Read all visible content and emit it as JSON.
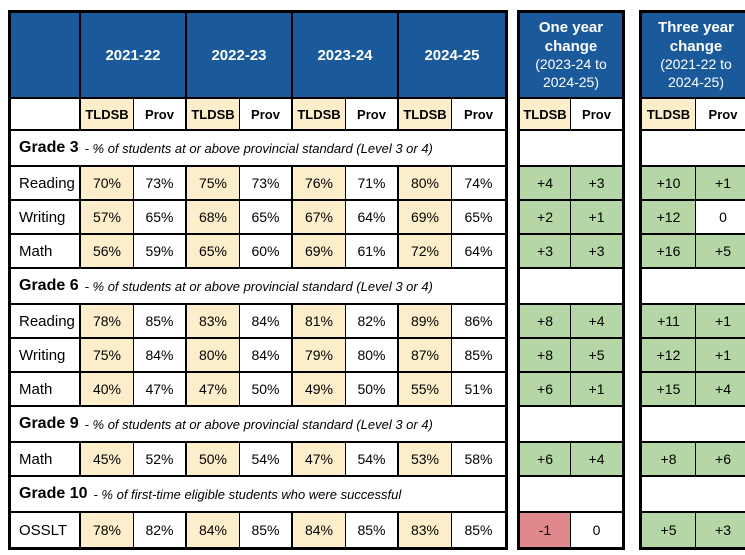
{
  "labels": {
    "tldsb": "TLDSB",
    "prov": "Prov"
  },
  "main_table": {
    "years": [
      "2021-22",
      "2022-23",
      "2023-24",
      "2024-25"
    ],
    "sections": [
      {
        "title": "Grade 3",
        "desc": "- % of students at or above provincial standard (Level 3 or 4)",
        "rows": [
          {
            "label": "Reading",
            "values": [
              "70%",
              "73%",
              "75%",
              "73%",
              "76%",
              "71%",
              "80%",
              "74%"
            ],
            "one_year": [
              "+4",
              "+3"
            ],
            "three_year": [
              "+10",
              "+1"
            ]
          },
          {
            "label": "Writing",
            "values": [
              "57%",
              "65%",
              "68%",
              "65%",
              "67%",
              "64%",
              "69%",
              "65%"
            ],
            "one_year": [
              "+2",
              "+1"
            ],
            "three_year": [
              "+12",
              "0"
            ]
          },
          {
            "label": "Math",
            "values": [
              "56%",
              "59%",
              "65%",
              "60%",
              "69%",
              "61%",
              "72%",
              "64%"
            ],
            "one_year": [
              "+3",
              "+3"
            ],
            "three_year": [
              "+16",
              "+5"
            ]
          }
        ]
      },
      {
        "title": "Grade 6",
        "desc": "- % of students at or above provincial standard (Level 3 or 4)",
        "rows": [
          {
            "label": "Reading",
            "values": [
              "78%",
              "85%",
              "83%",
              "84%",
              "81%",
              "82%",
              "89%",
              "86%"
            ],
            "one_year": [
              "+8",
              "+4"
            ],
            "three_year": [
              "+11",
              "+1"
            ]
          },
          {
            "label": "Writing",
            "values": [
              "75%",
              "84%",
              "80%",
              "84%",
              "79%",
              "80%",
              "87%",
              "85%"
            ],
            "one_year": [
              "+8",
              "+5"
            ],
            "three_year": [
              "+12",
              "+1"
            ]
          },
          {
            "label": "Math",
            "values": [
              "40%",
              "47%",
              "47%",
              "50%",
              "49%",
              "50%",
              "55%",
              "51%"
            ],
            "one_year": [
              "+6",
              "+1"
            ],
            "three_year": [
              "+15",
              "+4"
            ]
          }
        ]
      },
      {
        "title": "Grade 9",
        "desc": "- % of students at or above provincial standard (Level 3 or 4)",
        "rows": [
          {
            "label": "Math",
            "values": [
              "45%",
              "52%",
              "50%",
              "54%",
              "47%",
              "54%",
              "53%",
              "58%"
            ],
            "one_year": [
              "+6",
              "+4"
            ],
            "three_year": [
              "+8",
              "+6"
            ]
          }
        ]
      },
      {
        "title": "Grade 10",
        "desc": "- % of first-time eligible students who were successful",
        "rows": [
          {
            "label": "OSSLT",
            "values": [
              "78%",
              "82%",
              "84%",
              "85%",
              "84%",
              "85%",
              "83%",
              "85%"
            ],
            "one_year": [
              "-1",
              "0"
            ],
            "three_year": [
              "+5",
              "+3"
            ]
          }
        ]
      }
    ]
  },
  "one_year_panel": {
    "title": "One year change",
    "detail": "(2023-24 to 2024-25)"
  },
  "three_year_panel": {
    "title": "Three year change",
    "detail": "(2021-22 to 2024-25)"
  },
  "colors": {
    "header_blue": "#1b5a9a",
    "tldsb_cream": "#fdeecb",
    "positive_green": "#b5d7a5",
    "negative_pink": "#e0898d"
  }
}
